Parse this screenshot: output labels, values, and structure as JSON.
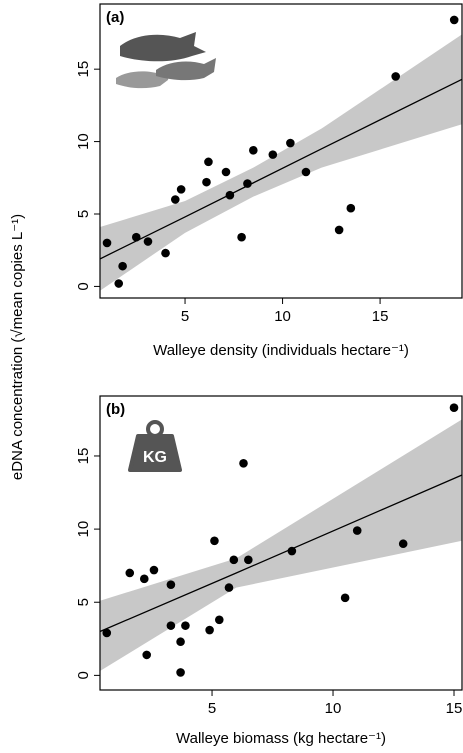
{
  "chart_data": [
    {
      "type": "scatter",
      "panel_label": "(a)",
      "xlabel": "Walleye density (individuals hectare⁻¹)",
      "ylabel": "eDNA concentration (√mean copies L⁻¹)",
      "x": [
        1.0,
        1.6,
        1.8,
        2.5,
        3.1,
        4.0,
        4.5,
        4.8,
        6.1,
        6.2,
        7.1,
        7.3,
        7.9,
        8.2,
        8.5,
        9.5,
        10.4,
        11.2,
        12.9,
        13.5,
        15.8,
        18.8
      ],
      "values": [
        3.0,
        0.2,
        1.4,
        3.4,
        3.1,
        2.3,
        6.0,
        6.7,
        7.2,
        8.6,
        7.9,
        6.3,
        3.4,
        7.1,
        9.4,
        9.1,
        9.9,
        7.9,
        3.9,
        5.4,
        14.5,
        18.4
      ],
      "color": "#000000",
      "fit": {
        "x": [
          0.64,
          5,
          8.5,
          12,
          19.2
        ],
        "values": [
          1.9,
          4.8,
          7.15,
          9.5,
          14.3
        ],
        "lower": [
          -0.3,
          3.7,
          6.2,
          8.2,
          11.2
        ],
        "upper": [
          4.1,
          5.9,
          8.2,
          10.9,
          17.4
        ],
        "color": "#000000",
        "band_color": "#c8c8c8"
      },
      "xlim": [
        0.64,
        19.2
      ],
      "ylim": [
        -0.8,
        19.5
      ],
      "xticks": [
        5,
        10,
        15
      ],
      "yticks": [
        0,
        5,
        10,
        15
      ]
    },
    {
      "type": "scatter",
      "panel_label": "(b)",
      "xlabel": "Walleye biomass (kg hectare⁻¹)",
      "icon_label": "KG",
      "x": [
        0.65,
        1.6,
        2.2,
        2.6,
        2.3,
        3.3,
        3.3,
        3.7,
        3.7,
        3.9,
        4.9,
        5.1,
        5.3,
        5.7,
        5.9,
        6.3,
        6.5,
        8.3,
        10.5,
        11.0,
        12.9,
        15.0
      ],
      "values": [
        2.9,
        7.0,
        6.6,
        7.2,
        1.4,
        6.2,
        3.4,
        2.3,
        0.2,
        3.4,
        3.1,
        9.2,
        3.8,
        6.0,
        7.9,
        14.5,
        7.9,
        8.5,
        5.3,
        9.9,
        9.0,
        18.3
      ],
      "color": "#000000",
      "fit": {
        "x": [
          0.37,
          6,
          15.33
        ],
        "values": [
          3.0,
          7.0,
          13.7
        ],
        "lower": [
          0.3,
          6.0,
          9.2
        ],
        "upper": [
          5.1,
          8.0,
          17.5
        ],
        "color": "#000000",
        "band_color": "#c8c8c8"
      },
      "xlim": [
        0.37,
        15.33
      ],
      "ylim": [
        -1.0,
        19.1
      ],
      "xticks": [
        5,
        10,
        15
      ],
      "yticks": [
        0,
        5,
        10,
        15
      ]
    }
  ]
}
